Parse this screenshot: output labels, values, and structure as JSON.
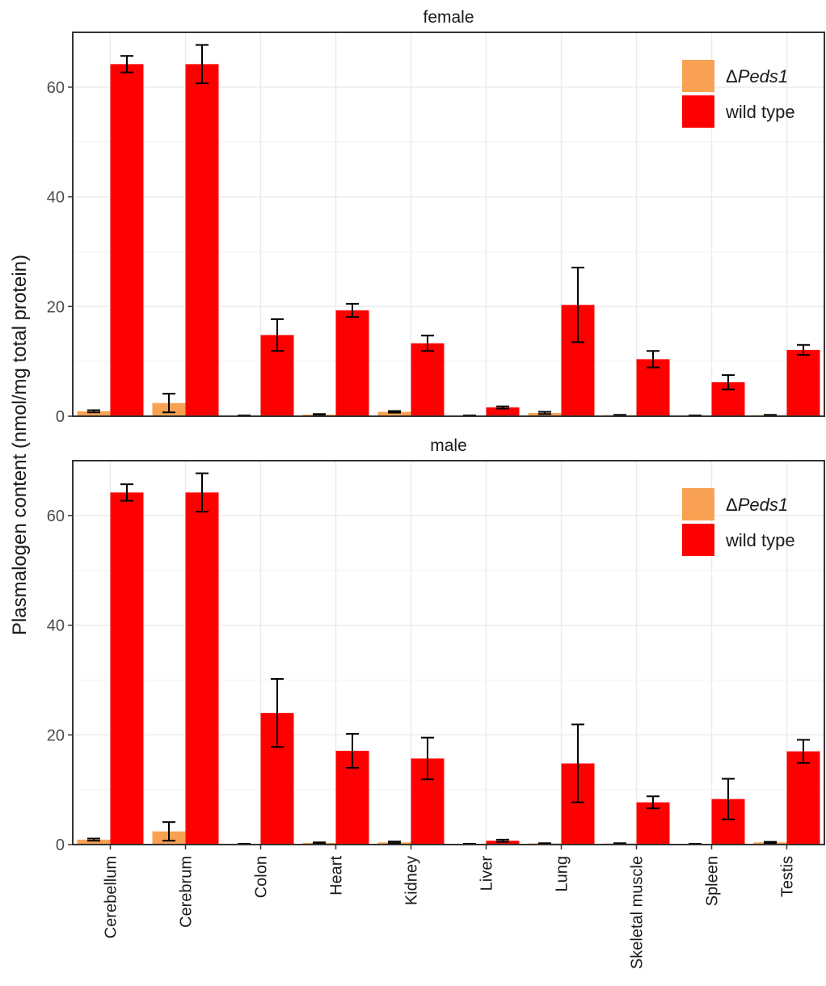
{
  "chart_data": {
    "type": "bar",
    "ylabel": "Plasmalogen content (nmol/mg total protein)",
    "xlabel": "",
    "ylim": [
      0,
      70
    ],
    "yticks": [
      0,
      20,
      40,
      60
    ],
    "grid": true,
    "legend_position": "top-right",
    "categories": [
      "Cerebellum",
      "Cerebrum",
      "Colon",
      "Heart",
      "Kidney",
      "Liver",
      "Lung",
      "Skeletal muscle",
      "Spleen",
      "Testis"
    ],
    "series_colors": {
      "knockout": "#f9a152",
      "wildtype": "#ff0000"
    },
    "legend": [
      {
        "key": "knockout",
        "prefix": "Δ",
        "label": "Peds1",
        "italic": true
      },
      {
        "key": "wildtype",
        "prefix": "",
        "label": "wild type",
        "italic": false
      }
    ],
    "panels": [
      {
        "name": "female",
        "series": [
          {
            "key": "knockout",
            "values": [
              0.9,
              2.4,
              0.1,
              0.3,
              0.8,
              0.1,
              0.6,
              0.2,
              0.1,
              0.2
            ],
            "errors": [
              0.2,
              1.7,
              0.05,
              0.1,
              0.15,
              0.05,
              0.2,
              0.05,
              0.05,
              0.05
            ]
          },
          {
            "key": "wildtype",
            "values": [
              64.2,
              64.2,
              14.8,
              19.3,
              13.3,
              1.6,
              20.3,
              10.4,
              6.2,
              12.1
            ],
            "errors": [
              1.5,
              3.5,
              2.9,
              1.2,
              1.4,
              0.2,
              6.8,
              1.5,
              1.3,
              0.9
            ]
          }
        ]
      },
      {
        "name": "male",
        "series": [
          {
            "key": "knockout",
            "values": [
              0.9,
              2.4,
              0.1,
              0.3,
              0.4,
              0.1,
              0.2,
              0.2,
              0.1,
              0.4
            ],
            "errors": [
              0.2,
              1.7,
              0.05,
              0.1,
              0.15,
              0.05,
              0.05,
              0.05,
              0.05,
              0.1
            ]
          },
          {
            "key": "wildtype",
            "values": [
              64.2,
              64.2,
              24.0,
              17.1,
              15.7,
              0.7,
              14.8,
              7.7,
              8.3,
              17.0
            ],
            "errors": [
              1.5,
              3.5,
              6.2,
              3.1,
              3.8,
              0.2,
              7.1,
              1.1,
              3.7,
              2.1
            ]
          }
        ]
      }
    ]
  }
}
